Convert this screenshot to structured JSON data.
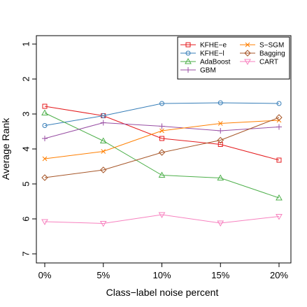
{
  "chart_data": {
    "type": "line",
    "xlabel": "Class−label noise percent",
    "ylabel": "Average Rank",
    "categories": [
      "0%",
      "5%",
      "10%",
      "15%",
      "20%"
    ],
    "ylim": [
      1,
      7
    ],
    "y_reversed": true,
    "y_ticks": [
      1,
      2,
      3,
      4,
      5,
      6,
      7
    ],
    "grid": false,
    "legend_position": "top-right",
    "series": [
      {
        "name": "KFHE−e",
        "color": "#e41a1c",
        "marker": "square",
        "values": [
          2.78,
          3.05,
          3.7,
          3.87,
          4.32
        ]
      },
      {
        "name": "KFHE−l",
        "color": "#377eb8",
        "marker": "circle",
        "values": [
          3.33,
          3.05,
          2.7,
          2.68,
          2.7
        ]
      },
      {
        "name": "AdaBoost",
        "color": "#4daf4a",
        "marker": "triangle-up",
        "values": [
          2.97,
          3.77,
          4.75,
          4.83,
          5.4
        ]
      },
      {
        "name": "GBM",
        "color": "#984ea3",
        "marker": "plus",
        "values": [
          3.7,
          3.25,
          3.35,
          3.48,
          3.37
        ]
      },
      {
        "name": "S−SGM",
        "color": "#ff7f00",
        "marker": "x",
        "values": [
          4.28,
          4.07,
          3.48,
          3.27,
          3.18
        ]
      },
      {
        "name": "Bagging",
        "color": "#a65628",
        "marker": "diamond",
        "values": [
          4.82,
          4.6,
          4.1,
          3.75,
          3.1
        ]
      },
      {
        "name": "CART",
        "color": "#f781bf",
        "marker": "triangle-down",
        "values": [
          6.08,
          6.13,
          5.88,
          6.12,
          5.93
        ]
      }
    ]
  }
}
